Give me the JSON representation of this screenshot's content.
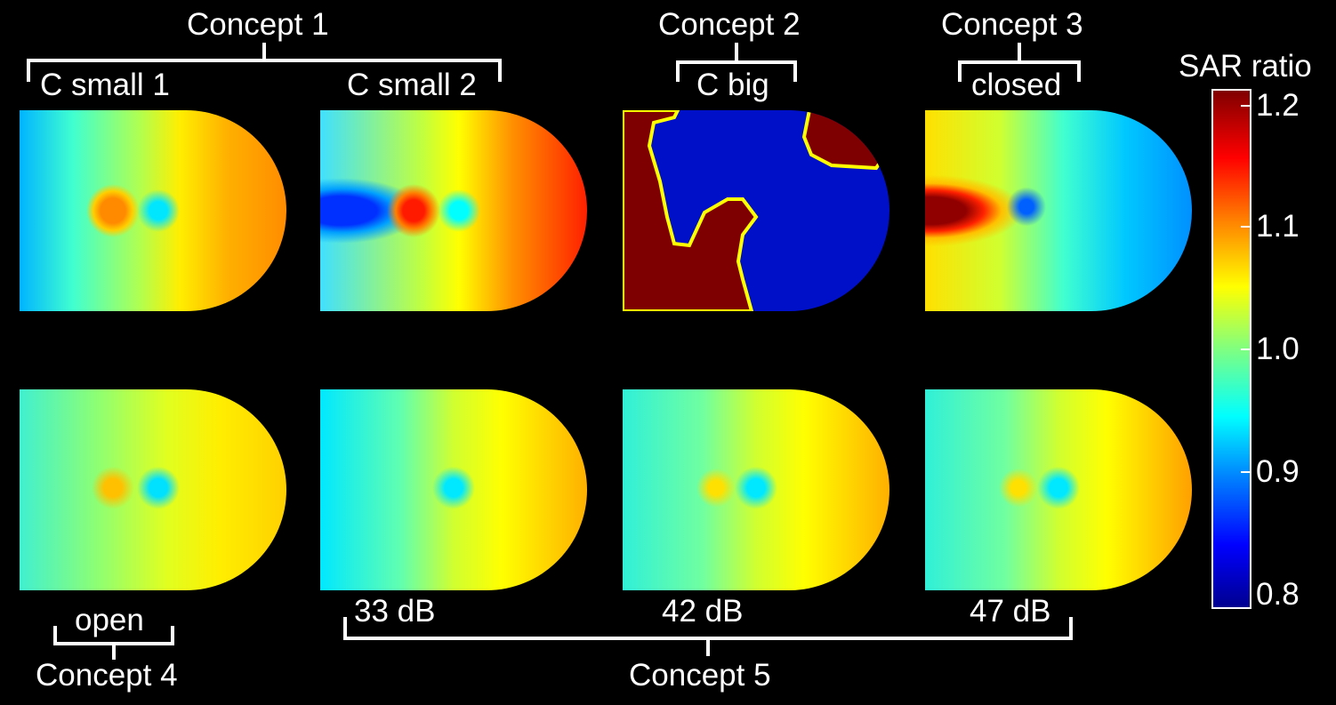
{
  "concepts": {
    "c1": {
      "label": "Concept 1",
      "sub1": "C small 1",
      "sub2": "C small 2"
    },
    "c2": {
      "label": "Concept 2",
      "sub": "C big"
    },
    "c3": {
      "label": "Concept 3",
      "sub": "closed"
    },
    "c4": {
      "label": "Concept 4",
      "sub": "open"
    },
    "c5": {
      "label": "Concept 5",
      "db1": "33 dB",
      "db2": "42 dB",
      "db3": "47 dB"
    }
  },
  "colorbar": {
    "title": "SAR ratio",
    "ticks": [
      "1.2",
      "1.1",
      "1.0",
      "0.9",
      "0.8"
    ],
    "colormap": [
      "#00008f",
      "#0000ff",
      "#0080ff",
      "#00ffff",
      "#80ff80",
      "#ffff00",
      "#ff8000",
      "#ff0000",
      "#800000"
    ]
  }
}
